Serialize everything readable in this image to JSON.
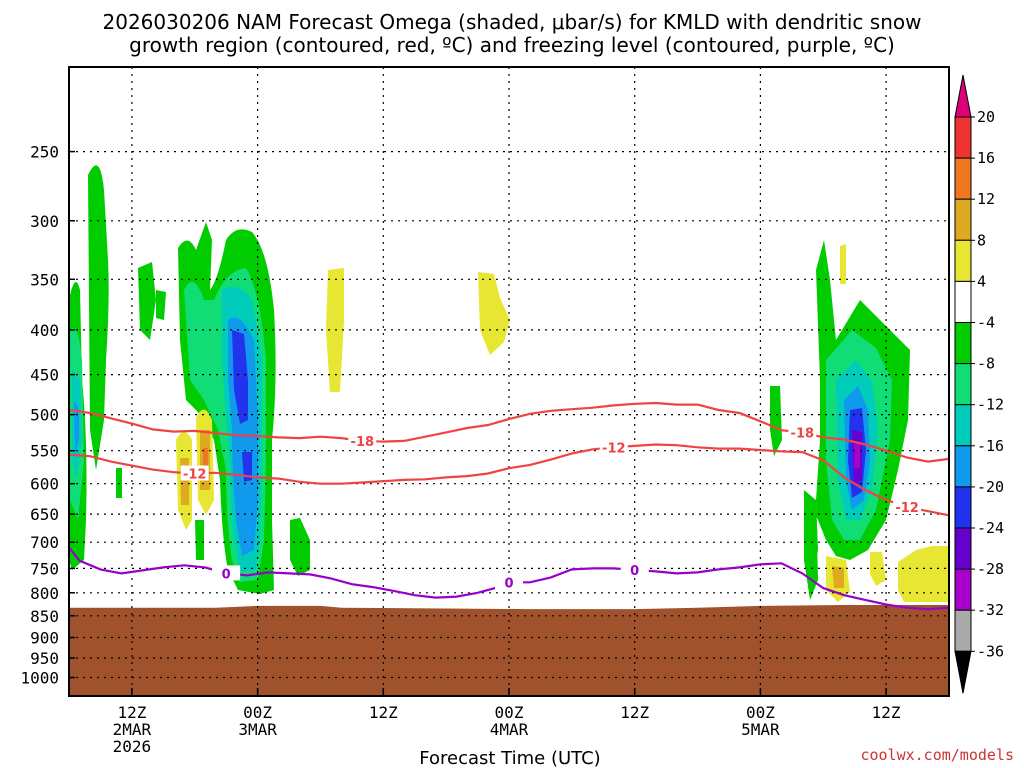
{
  "chart_data": {
    "type": "heatmap",
    "title": [
      "2026030206 NAM Forecast Omega (shaded, μbar/s) for KMLD with dendritic snow",
      "growth region (contoured, red, ºC) and freezing level (contoured, purple, ºC)"
    ],
    "xlabel": "Forecast Time (UTC)",
    "y_ticks": [
      250,
      300,
      350,
      400,
      450,
      500,
      550,
      600,
      650,
      700,
      750,
      800,
      850,
      900,
      950,
      1000
    ],
    "y_tick_labels": [
      "250",
      "300",
      "350",
      "400",
      "450",
      "500",
      "550",
      "600",
      "650",
      "700",
      "750",
      "800",
      "850",
      "900",
      "950",
      "1000"
    ],
    "y_range_hpa": [
      200,
      1050
    ],
    "x_range_hours": [
      6,
      90
    ],
    "x_ticks": [
      {
        "hour": 12,
        "lines": [
          "12Z",
          "2MAR",
          "2026"
        ]
      },
      {
        "hour": 24,
        "lines": [
          "00Z",
          "3MAR"
        ]
      },
      {
        "hour": 36,
        "lines": [
          "12Z"
        ]
      },
      {
        "hour": 48,
        "lines": [
          "00Z",
          "4MAR"
        ]
      },
      {
        "hour": 60,
        "lines": [
          "12Z"
        ]
      },
      {
        "hour": 72,
        "lines": [
          "00Z",
          "5MAR"
        ]
      },
      {
        "hour": 84,
        "lines": [
          "12Z"
        ]
      }
    ],
    "colorbar": {
      "labels": [
        "20",
        "16",
        "12",
        "8",
        "4",
        "-4",
        "-8",
        "-12",
        "-16",
        "-20",
        "-24",
        "-28",
        "-32",
        "-36"
      ],
      "colors": [
        "#dd0077",
        "#ee3333",
        "#ee7722",
        "#ddaa22",
        "#e6e633",
        "#ffffff",
        "#00cc00",
        "#11dd77",
        "#00ccbb",
        "#1199ee",
        "#2233ee",
        "#6600cc",
        "#aa00cc",
        "#aaaaaa",
        "#000000"
      ]
    },
    "ground_color": "#a0522d",
    "contours": [
      {
        "name": "-18",
        "label": "-18",
        "color": "#ee4444",
        "points": [
          [
            6,
            494
          ],
          [
            8,
            498
          ],
          [
            10,
            505
          ],
          [
            12,
            512
          ],
          [
            14,
            520
          ],
          [
            16,
            523
          ],
          [
            18,
            522
          ],
          [
            20,
            525
          ],
          [
            22,
            528
          ],
          [
            24,
            529
          ],
          [
            26,
            531
          ],
          [
            28,
            532
          ],
          [
            30,
            530
          ],
          [
            32,
            532
          ],
          [
            34,
            536
          ],
          [
            36,
            537
          ],
          [
            38,
            536
          ],
          [
            40,
            530
          ],
          [
            42,
            524
          ],
          [
            44,
            518
          ],
          [
            46,
            514
          ],
          [
            48,
            506
          ],
          [
            50,
            499
          ],
          [
            52,
            495
          ],
          [
            54,
            493
          ],
          [
            56,
            491
          ],
          [
            58,
            488
          ],
          [
            60,
            486
          ],
          [
            62,
            485
          ],
          [
            64,
            487
          ],
          [
            66,
            487
          ],
          [
            68,
            494
          ],
          [
            70,
            498
          ],
          [
            72,
            509
          ],
          [
            74,
            521
          ],
          [
            76,
            524
          ],
          [
            78,
            531
          ],
          [
            80,
            534
          ],
          [
            82,
            541
          ],
          [
            84,
            550
          ],
          [
            86,
            560
          ],
          [
            88,
            566
          ],
          [
            90,
            562
          ]
        ]
      },
      {
        "name": "-12",
        "label": "-12",
        "color": "#ee4444",
        "points": [
          [
            6,
            556
          ],
          [
            8,
            558
          ],
          [
            10,
            566
          ],
          [
            12,
            572
          ],
          [
            14,
            578
          ],
          [
            16,
            582
          ],
          [
            18,
            584
          ],
          [
            20,
            583
          ],
          [
            22,
            586
          ],
          [
            24,
            590
          ],
          [
            26,
            592
          ],
          [
            28,
            597
          ],
          [
            30,
            600
          ],
          [
            32,
            600
          ],
          [
            34,
            598
          ],
          [
            36,
            596
          ],
          [
            38,
            594
          ],
          [
            40,
            593
          ],
          [
            42,
            590
          ],
          [
            44,
            588
          ],
          [
            46,
            584
          ],
          [
            48,
            576
          ],
          [
            50,
            571
          ],
          [
            52,
            563
          ],
          [
            54,
            554
          ],
          [
            56,
            548
          ],
          [
            58,
            545
          ],
          [
            60,
            543
          ],
          [
            62,
            541
          ],
          [
            64,
            542
          ],
          [
            66,
            545
          ],
          [
            68,
            547
          ],
          [
            70,
            547
          ],
          [
            72,
            549
          ],
          [
            74,
            551
          ],
          [
            76,
            552
          ],
          [
            78,
            564
          ],
          [
            80,
            590
          ],
          [
            82,
            610
          ],
          [
            84,
            626
          ],
          [
            86,
            638
          ],
          [
            88,
            645
          ],
          [
            90,
            652
          ]
        ]
      },
      {
        "name": "0",
        "label": "0",
        "color": "#9900cc",
        "points": [
          [
            6,
            710
          ],
          [
            7,
            735
          ],
          [
            9,
            752
          ],
          [
            11,
            760
          ],
          [
            13,
            754
          ],
          [
            15,
            748
          ],
          [
            17,
            744
          ],
          [
            19,
            748
          ],
          [
            21,
            760
          ],
          [
            23,
            764
          ],
          [
            25,
            758
          ],
          [
            27,
            760
          ],
          [
            29,
            762
          ],
          [
            31,
            770
          ],
          [
            33,
            782
          ],
          [
            35,
            788
          ],
          [
            37,
            796
          ],
          [
            39,
            805
          ],
          [
            41,
            810
          ],
          [
            43,
            808
          ],
          [
            45,
            800
          ],
          [
            47,
            788
          ],
          [
            48,
            778
          ],
          [
            50,
            778
          ],
          [
            52,
            768
          ],
          [
            54,
            752
          ],
          [
            56,
            750
          ],
          [
            58,
            750
          ],
          [
            60,
            753
          ],
          [
            62,
            756
          ],
          [
            64,
            760
          ],
          [
            66,
            758
          ],
          [
            68,
            752
          ],
          [
            70,
            748
          ],
          [
            72,
            742
          ],
          [
            74,
            740
          ],
          [
            76,
            760
          ],
          [
            78,
            790
          ],
          [
            80,
            805
          ],
          [
            82,
            815
          ],
          [
            84,
            825
          ],
          [
            86,
            832
          ],
          [
            88,
            835
          ],
          [
            90,
            832
          ]
        ]
      }
    ]
  },
  "credit": "coolwx.com/models"
}
